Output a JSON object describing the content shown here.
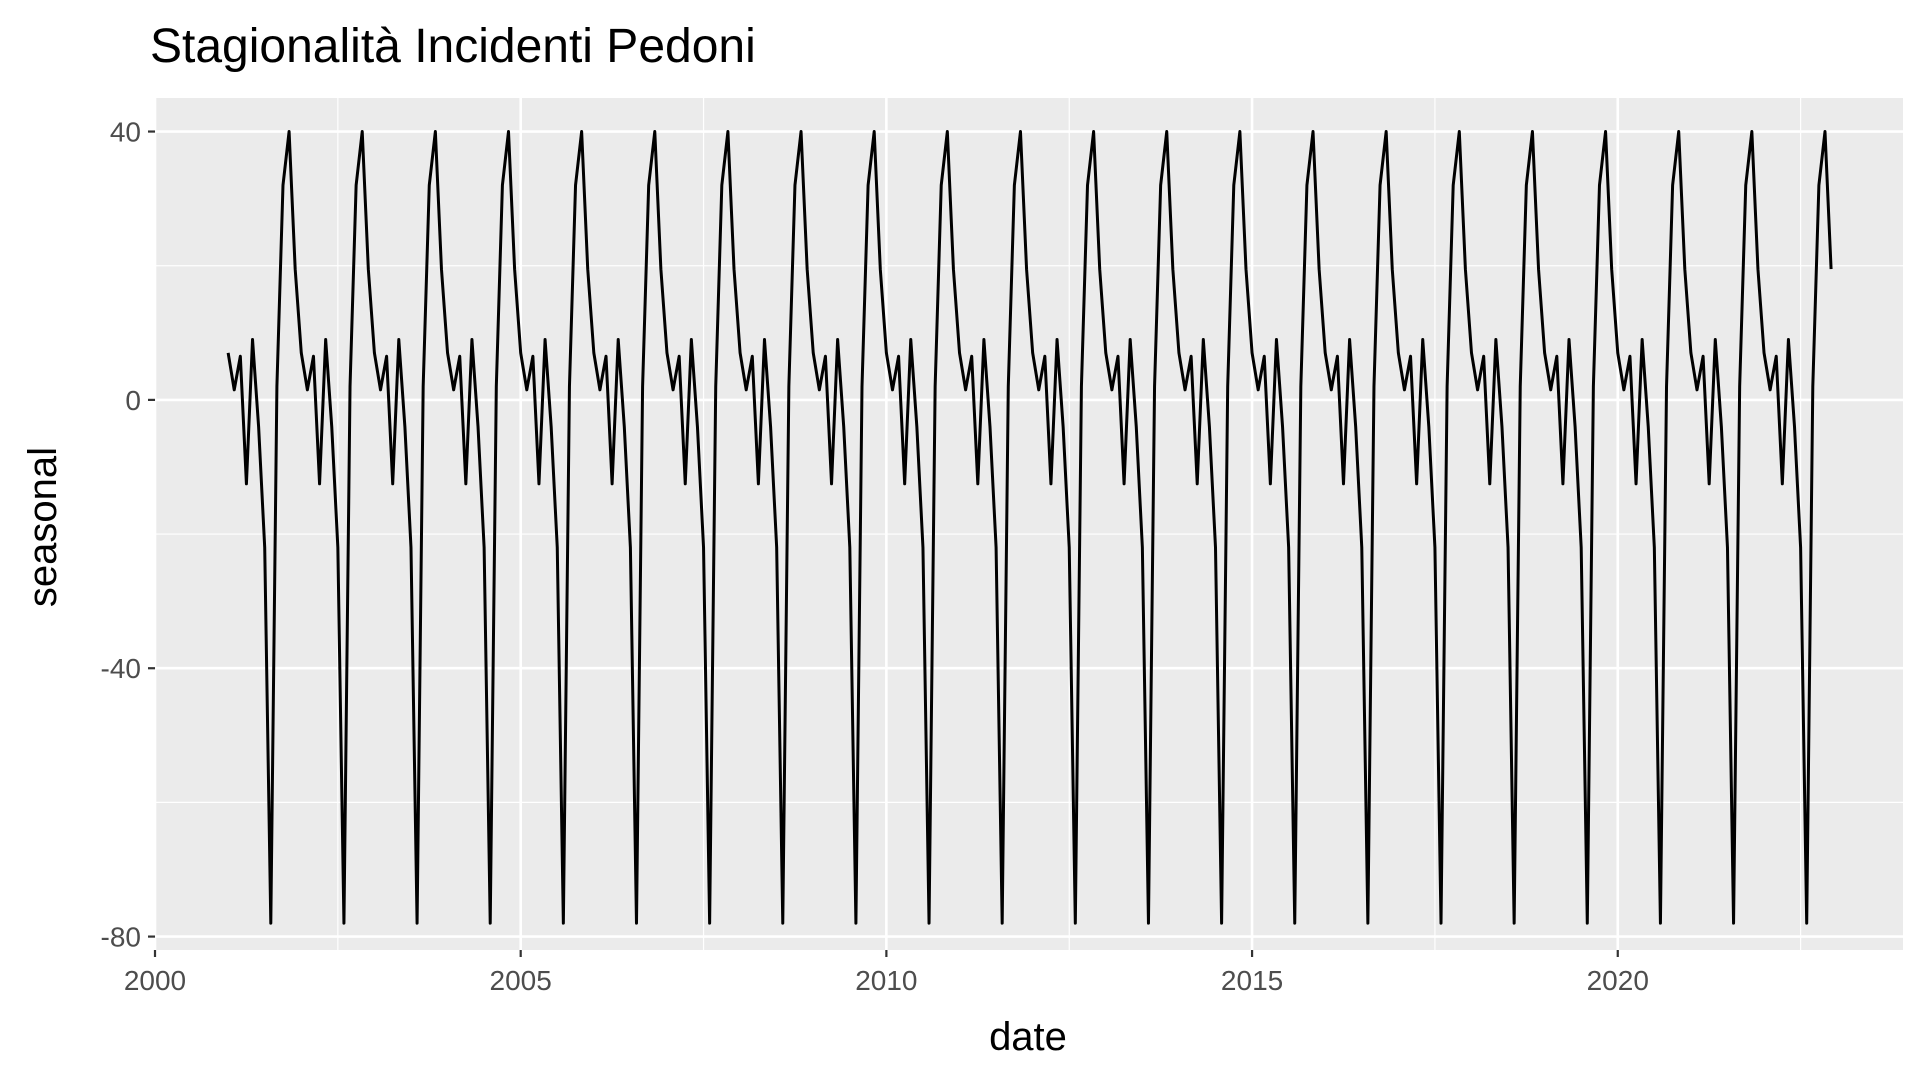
{
  "chart_data": {
    "type": "line",
    "title": "Stagionalità Incidenti Pedoni",
    "xlabel": "date",
    "ylabel": "seasonal",
    "xlim": [
      2000,
      2023.9
    ],
    "ylim": [
      -82,
      45
    ],
    "grid": true,
    "x_ticks": [
      2000,
      2005,
      2010,
      2015,
      2020
    ],
    "x_tick_labels": [
      "2000",
      "2005",
      "2010",
      "2015",
      "2020"
    ],
    "y_ticks": [
      -80,
      -40,
      0,
      40
    ],
    "y_tick_labels": [
      "-80",
      "-40",
      "0",
      "40"
    ],
    "series": [
      {
        "name": "seasonal",
        "color": "#000000",
        "start_year": 2001,
        "start_month": 1,
        "end_year": 2022,
        "end_month": 12,
        "monthly_pattern": [
          7,
          1.5,
          6.5,
          -12.5,
          9,
          -4,
          -22,
          -78,
          2,
          32,
          40,
          19.5
        ]
      }
    ]
  }
}
